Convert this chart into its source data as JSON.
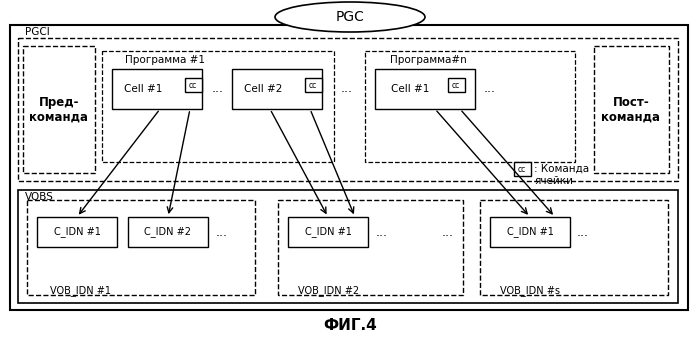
{
  "title": "ФИГ.4",
  "pgc_label": "PGC",
  "pgci_label": "PGCI",
  "vobs_label": "VOBS",
  "pre_cmd": "Пред-\nкоманда",
  "post_cmd": "Пост-\nкоманда",
  "prog1_label": "Программа #1",
  "progn_label": "Программа#n",
  "cell1_label": "Cell #1",
  "cell2_label": "Cell #2",
  "cell1n_label": "Cell #1",
  "cc_label": "cc",
  "dots": "...",
  "vob1_label": "VOB_IDN #1",
  "vob2_label": "VOB_IDN #2",
  "vobn_label": "VOB_IDN #s",
  "cidn1": "C_IDN #1",
  "cidn2": "C_IDN #2",
  "cidn3": "C_IDN #1",
  "cidn4": "C_IDN #1",
  "cc_note1": "cc",
  "cc_note2": ": Команда",
  "cc_note3": "ячейки",
  "bg_color": "#ffffff"
}
